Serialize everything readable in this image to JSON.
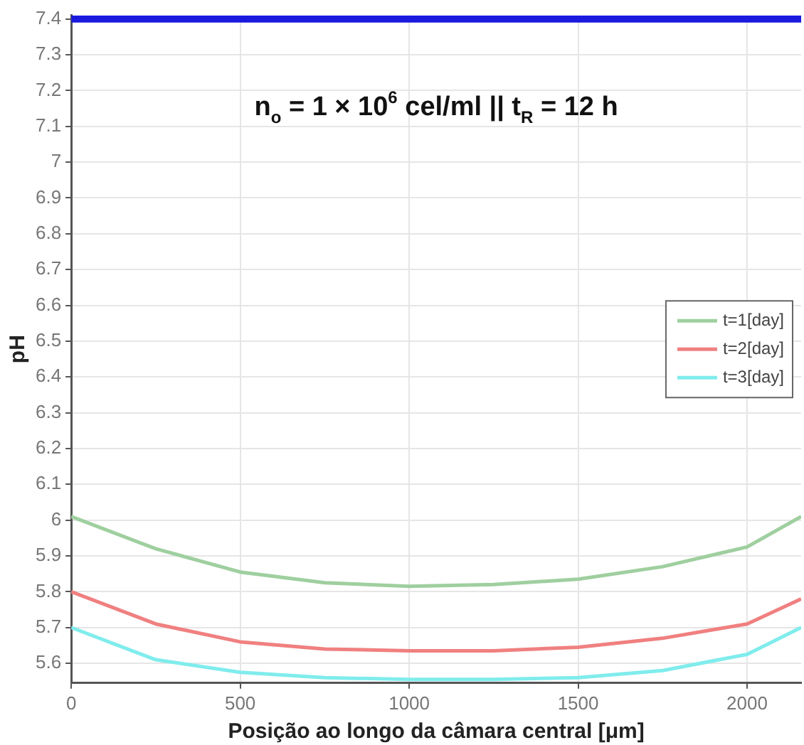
{
  "chart_data": {
    "type": "line",
    "xlabel": "Posição ao longo da câmara central [μm]",
    "ylabel": "pH",
    "annotations": [
      "n$_{o}$ = 1 × 10$^{6}$ cel/ml || t$_{R}$ = 12 h"
    ],
    "xlim": [
      0,
      2160
    ],
    "xticks": [
      0,
      500,
      1000,
      1500,
      2000
    ],
    "ylim": [
      5.545,
      7.41
    ],
    "yticks": [
      5.6,
      5.7,
      5.8,
      5.9,
      6,
      6.1,
      6.2,
      6.3,
      6.4,
      6.5,
      6.6,
      6.7,
      6.8,
      6.9,
      7,
      7.1,
      7.2,
      7.3,
      7.4
    ],
    "grid": true,
    "legend": "right",
    "marker": "none",
    "line_style": "solid",
    "x": [
      0,
      250,
      500,
      750,
      1000,
      1250,
      1500,
      1750,
      2000,
      2160
    ],
    "series": [
      {
        "color": "#1a1adf",
        "values": [
          7.4,
          7.4,
          7.4,
          7.4,
          7.4,
          7.4,
          7.4,
          7.4,
          7.4,
          7.4
        ]
      },
      {
        "name": "t=1[day]",
        "color": "#9fcf9f",
        "values": [
          6.01,
          5.92,
          5.855,
          5.825,
          5.815,
          5.82,
          5.835,
          5.87,
          5.925,
          6.01
        ]
      },
      {
        "name": "t=2[day]",
        "color": "#f08080",
        "values": [
          5.8,
          5.71,
          5.66,
          5.64,
          5.635,
          5.635,
          5.645,
          5.67,
          5.71,
          5.78
        ]
      },
      {
        "name": "t=3[day]",
        "color": "#80ecec",
        "values": [
          5.7,
          5.61,
          5.575,
          5.56,
          5.555,
          5.555,
          5.56,
          5.58,
          5.625,
          5.7
        ]
      }
    ]
  }
}
